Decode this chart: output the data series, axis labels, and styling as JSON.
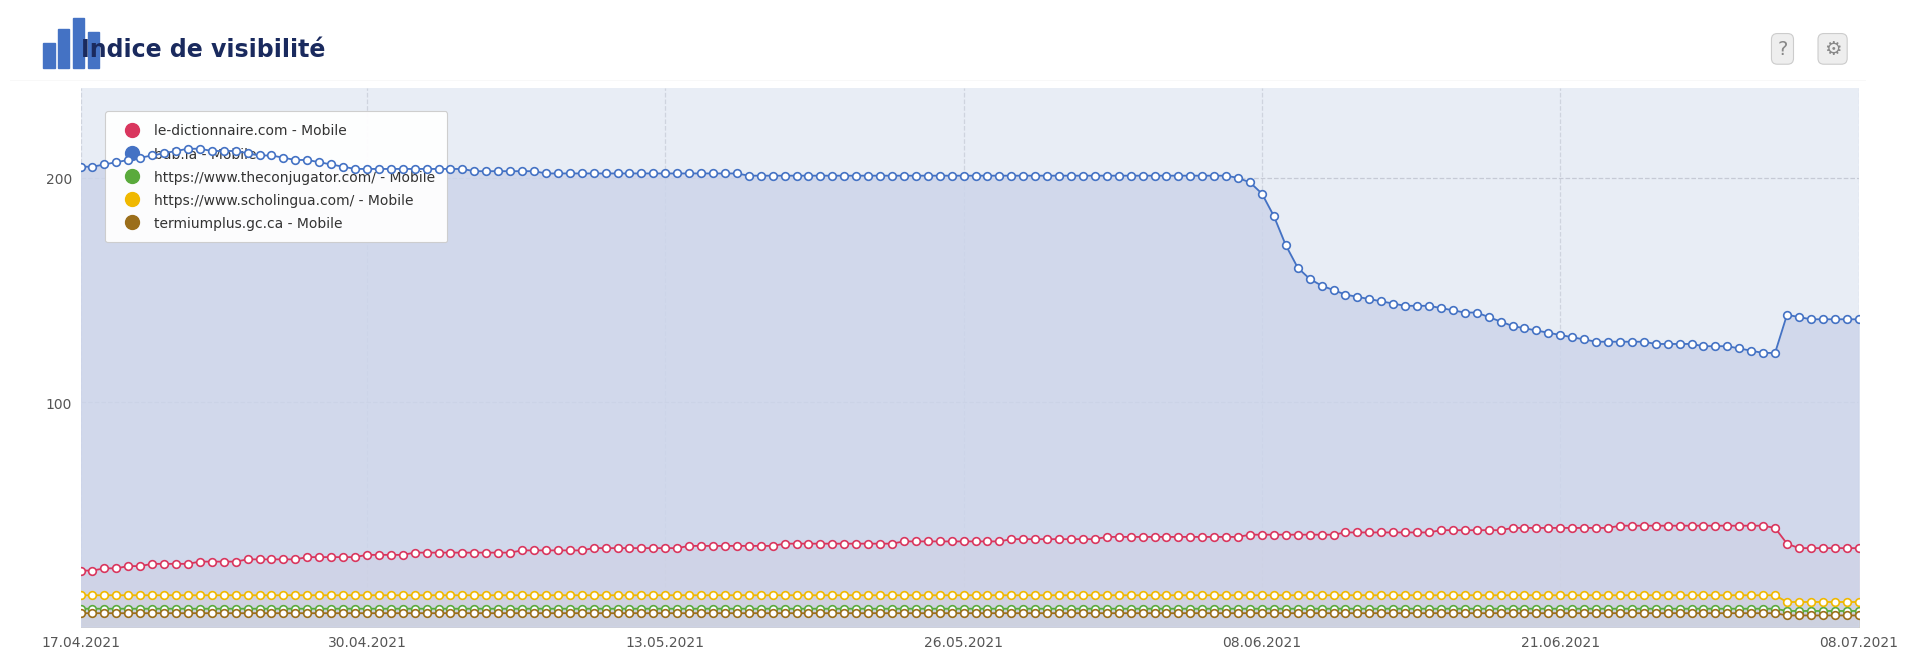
{
  "title": "Indice de visibilité",
  "plot_bg_color": "#e8edf5",
  "xlabel_dates": [
    "17.04.2021",
    "30.04.2021",
    "13.05.2021",
    "26.05.2021",
    "08.06.2021",
    "21.06.2021",
    "08.07.2021"
  ],
  "ylim": [
    0,
    240
  ],
  "yticks": [
    100,
    200
  ],
  "grid_color": "#b8bcc8",
  "series": {
    "bab_la": {
      "label": "bab.la - Mobile",
      "color": "#4472c4",
      "fill_color": "#cdd5ea",
      "values": [
        205,
        205,
        206,
        207,
        208,
        209,
        210,
        211,
        212,
        213,
        213,
        212,
        212,
        212,
        211,
        210,
        210,
        209,
        208,
        208,
        207,
        206,
        205,
        204,
        204,
        204,
        204,
        204,
        204,
        204,
        204,
        204,
        204,
        203,
        203,
        203,
        203,
        203,
        203,
        202,
        202,
        202,
        202,
        202,
        202,
        202,
        202,
        202,
        202,
        202,
        202,
        202,
        202,
        202,
        202,
        202,
        201,
        201,
        201,
        201,
        201,
        201,
        201,
        201,
        201,
        201,
        201,
        201,
        201,
        201,
        201,
        201,
        201,
        201,
        201,
        201,
        201,
        201,
        201,
        201,
        201,
        201,
        201,
        201,
        201,
        201,
        201,
        201,
        201,
        201,
        201,
        201,
        201,
        201,
        201,
        201,
        201,
        200,
        198,
        193,
        183,
        170,
        160,
        155,
        152,
        150,
        148,
        147,
        146,
        145,
        144,
        143,
        143,
        143,
        142,
        141,
        140,
        140,
        138,
        136,
        134,
        133,
        132,
        131,
        130,
        129,
        128,
        127,
        127,
        127,
        127,
        127,
        126,
        126,
        126,
        126,
        125,
        125,
        125,
        124,
        123,
        122,
        122,
        139,
        138,
        137,
        137,
        137,
        137,
        137
      ]
    },
    "le_dico": {
      "label": "le-dictionnaire.com - Mobile",
      "color": "#d9365e",
      "fill_color": "#e8c8d4",
      "values": [
        25,
        25,
        26,
        26,
        27,
        27,
        28,
        28,
        28,
        28,
        29,
        29,
        29,
        29,
        30,
        30,
        30,
        30,
        30,
        31,
        31,
        31,
        31,
        31,
        32,
        32,
        32,
        32,
        33,
        33,
        33,
        33,
        33,
        33,
        33,
        33,
        33,
        34,
        34,
        34,
        34,
        34,
        34,
        35,
        35,
        35,
        35,
        35,
        35,
        35,
        35,
        36,
        36,
        36,
        36,
        36,
        36,
        36,
        36,
        37,
        37,
        37,
        37,
        37,
        37,
        37,
        37,
        37,
        37,
        38,
        38,
        38,
        38,
        38,
        38,
        38,
        38,
        38,
        39,
        39,
        39,
        39,
        39,
        39,
        39,
        39,
        40,
        40,
        40,
        40,
        40,
        40,
        40,
        40,
        40,
        40,
        40,
        40,
        41,
        41,
        41,
        41,
        41,
        41,
        41,
        41,
        42,
        42,
        42,
        42,
        42,
        42,
        42,
        42,
        43,
        43,
        43,
        43,
        43,
        43,
        44,
        44,
        44,
        44,
        44,
        44,
        44,
        44,
        44,
        45,
        45,
        45,
        45,
        45,
        45,
        45,
        45,
        45,
        45,
        45,
        45,
        45,
        44,
        37,
        35,
        35,
        35,
        35,
        35,
        35
      ]
    },
    "theconjugator": {
      "label": "https://www.theconjugator.com/ - Mobile",
      "color": "#5aaa3c",
      "fill_color": "#b8dca8",
      "values": [
        8,
        8,
        8,
        8,
        8,
        8,
        8,
        8,
        8,
        8,
        8,
        8,
        8,
        8,
        8,
        8,
        8,
        8,
        8,
        8,
        8,
        8,
        8,
        8,
        8,
        8,
        8,
        8,
        8,
        8,
        8,
        8,
        8,
        8,
        8,
        8,
        8,
        8,
        8,
        8,
        8,
        8,
        8,
        8,
        8,
        8,
        8,
        8,
        8,
        8,
        8,
        8,
        8,
        8,
        8,
        8,
        8,
        8,
        8,
        8,
        8,
        8,
        8,
        8,
        8,
        8,
        8,
        8,
        8,
        8,
        8,
        8,
        8,
        8,
        8,
        8,
        8,
        8,
        8,
        8,
        8,
        8,
        8,
        8,
        8,
        8,
        8,
        8,
        8,
        8,
        8,
        8,
        8,
        8,
        8,
        8,
        8,
        8,
        8,
        8,
        8,
        8,
        8,
        8,
        8,
        8,
        8,
        8,
        8,
        8,
        8,
        8,
        8,
        8,
        8,
        8,
        8,
        8,
        8,
        8,
        8,
        8,
        8,
        8,
        8,
        8,
        8,
        8,
        8,
        8,
        8,
        8,
        8,
        8,
        8,
        8,
        8,
        8,
        8,
        8,
        8,
        8,
        8,
        7,
        7,
        7,
        7,
        7,
        7,
        7
      ]
    },
    "scholingua": {
      "label": "https://www.scholingua.com/ - Mobile",
      "color": "#f0b800",
      "fill_color": "#f5e090",
      "values": [
        14,
        14,
        14,
        14,
        14,
        14,
        14,
        14,
        14,
        14,
        14,
        14,
        14,
        14,
        14,
        14,
        14,
        14,
        14,
        14,
        14,
        14,
        14,
        14,
        14,
        14,
        14,
        14,
        14,
        14,
        14,
        14,
        14,
        14,
        14,
        14,
        14,
        14,
        14,
        14,
        14,
        14,
        14,
        14,
        14,
        14,
        14,
        14,
        14,
        14,
        14,
        14,
        14,
        14,
        14,
        14,
        14,
        14,
        14,
        14,
        14,
        14,
        14,
        14,
        14,
        14,
        14,
        14,
        14,
        14,
        14,
        14,
        14,
        14,
        14,
        14,
        14,
        14,
        14,
        14,
        14,
        14,
        14,
        14,
        14,
        14,
        14,
        14,
        14,
        14,
        14,
        14,
        14,
        14,
        14,
        14,
        14,
        14,
        14,
        14,
        14,
        14,
        14,
        14,
        14,
        14,
        14,
        14,
        14,
        14,
        14,
        14,
        14,
        14,
        14,
        14,
        14,
        14,
        14,
        14,
        14,
        14,
        14,
        14,
        14,
        14,
        14,
        14,
        14,
        14,
        14,
        14,
        14,
        14,
        14,
        14,
        14,
        14,
        14,
        14,
        14,
        14,
        14,
        11,
        11,
        11,
        11,
        11,
        11,
        11
      ]
    },
    "termiumplus": {
      "label": "termiumplus.gc.ca - Mobile",
      "color": "#9b6e1a",
      "fill_color": "#c8a870",
      "values": [
        6,
        6,
        6,
        6,
        6,
        6,
        6,
        6,
        6,
        6,
        6,
        6,
        6,
        6,
        6,
        6,
        6,
        6,
        6,
        6,
        6,
        6,
        6,
        6,
        6,
        6,
        6,
        6,
        6,
        6,
        6,
        6,
        6,
        6,
        6,
        6,
        6,
        6,
        6,
        6,
        6,
        6,
        6,
        6,
        6,
        6,
        6,
        6,
        6,
        6,
        6,
        6,
        6,
        6,
        6,
        6,
        6,
        6,
        6,
        6,
        6,
        6,
        6,
        6,
        6,
        6,
        6,
        6,
        6,
        6,
        6,
        6,
        6,
        6,
        6,
        6,
        6,
        6,
        6,
        6,
        6,
        6,
        6,
        6,
        6,
        6,
        6,
        6,
        6,
        6,
        6,
        6,
        6,
        6,
        6,
        6,
        6,
        6,
        6,
        6,
        6,
        6,
        6,
        6,
        6,
        6,
        6,
        6,
        6,
        6,
        6,
        6,
        6,
        6,
        6,
        6,
        6,
        6,
        6,
        6,
        6,
        6,
        6,
        6,
        6,
        6,
        6,
        6,
        6,
        6,
        6,
        6,
        6,
        6,
        6,
        6,
        6,
        6,
        6,
        6,
        6,
        6,
        6,
        5,
        5,
        5,
        5,
        5,
        5,
        5
      ]
    }
  },
  "legend_items": [
    {
      "label": "le-dictionnaire.com - Mobile",
      "color": "#d9365e"
    },
    {
      "label": "bab.la - Mobile",
      "color": "#4472c4"
    },
    {
      "label": "https://www.theconjugator.com/ - Mobile",
      "color": "#5aaa3c"
    },
    {
      "label": "https://www.scholingua.com/ - Mobile",
      "color": "#f0b800"
    },
    {
      "label": "termiumplus.gc.ca - Mobile",
      "color": "#9b6e1a"
    }
  ]
}
